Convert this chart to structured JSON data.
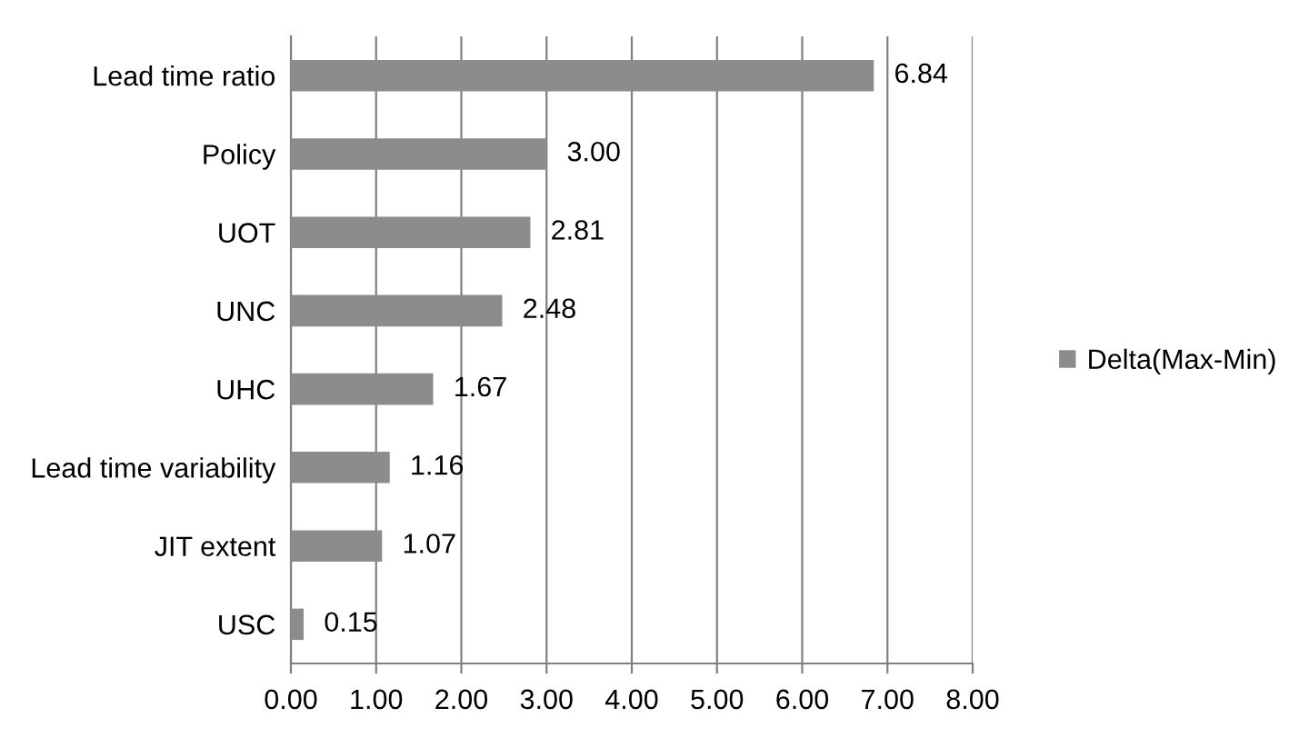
{
  "chart_data": {
    "type": "bar",
    "orientation": "horizontal",
    "categories": [
      "Lead time ratio",
      "Policy",
      "UOT",
      "UNC",
      "UHC",
      "Lead time variability",
      "JIT extent",
      "USC"
    ],
    "series": [
      {
        "name": "Delta(Max-Min)",
        "color": "#8c8c8c",
        "values": [
          6.84,
          3.0,
          2.81,
          2.48,
          1.67,
          1.16,
          1.07,
          0.15
        ],
        "value_labels": [
          "6.84",
          "3.00",
          "2.81",
          "2.48",
          "1.67",
          "1.16",
          "1.07",
          "0.15"
        ]
      }
    ],
    "xlim": [
      0,
      8
    ],
    "xticks": [
      {
        "value": 0,
        "label": "0.00"
      },
      {
        "value": 1,
        "label": "1.00"
      },
      {
        "value": 2,
        "label": "2.00"
      },
      {
        "value": 3,
        "label": "3.00"
      },
      {
        "value": 4,
        "label": "4.00"
      },
      {
        "value": 5,
        "label": "5.00"
      },
      {
        "value": 6,
        "label": "6.00"
      },
      {
        "value": 7,
        "label": "7.00"
      },
      {
        "value": 8,
        "label": "8.00"
      }
    ],
    "grid": "x",
    "legend": "right"
  }
}
